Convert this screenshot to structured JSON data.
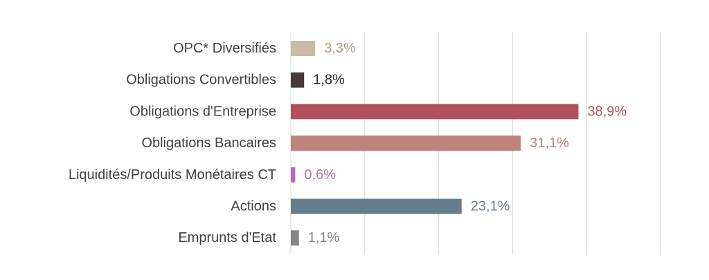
{
  "chart_data": {
    "type": "bar",
    "orientation": "horizontal",
    "title": "",
    "xlabel": "",
    "ylabel": "",
    "xlim": [
      0,
      50
    ],
    "grid": true,
    "legend": "none",
    "categories": [
      "OPC* Diversifiés",
      "Obligations Convertibles",
      "Obligations d'Entreprise",
      "Obligations Bancaires",
      "Liquidités/Produits Monétaires CT",
      "Actions",
      "Emprunts d'Etat"
    ],
    "values": [
      3.3,
      1.8,
      38.9,
      31.1,
      0.6,
      23.1,
      1.1
    ],
    "value_labels": [
      "3,3%",
      "1,8%",
      "38,9%",
      "31,1%",
      "0,6%",
      "23,1%",
      "1,1%"
    ],
    "colors": [
      "#c9bba5",
      "#463a32",
      "#b0505a",
      "#c0827a",
      "#b86cb8",
      "#657d8a",
      "#848484"
    ],
    "label_colors": [
      "#b09a78",
      "#262626",
      "#b0505a",
      "#c0827a",
      "#b86cb8",
      "#657d8a",
      "#848484"
    ]
  }
}
